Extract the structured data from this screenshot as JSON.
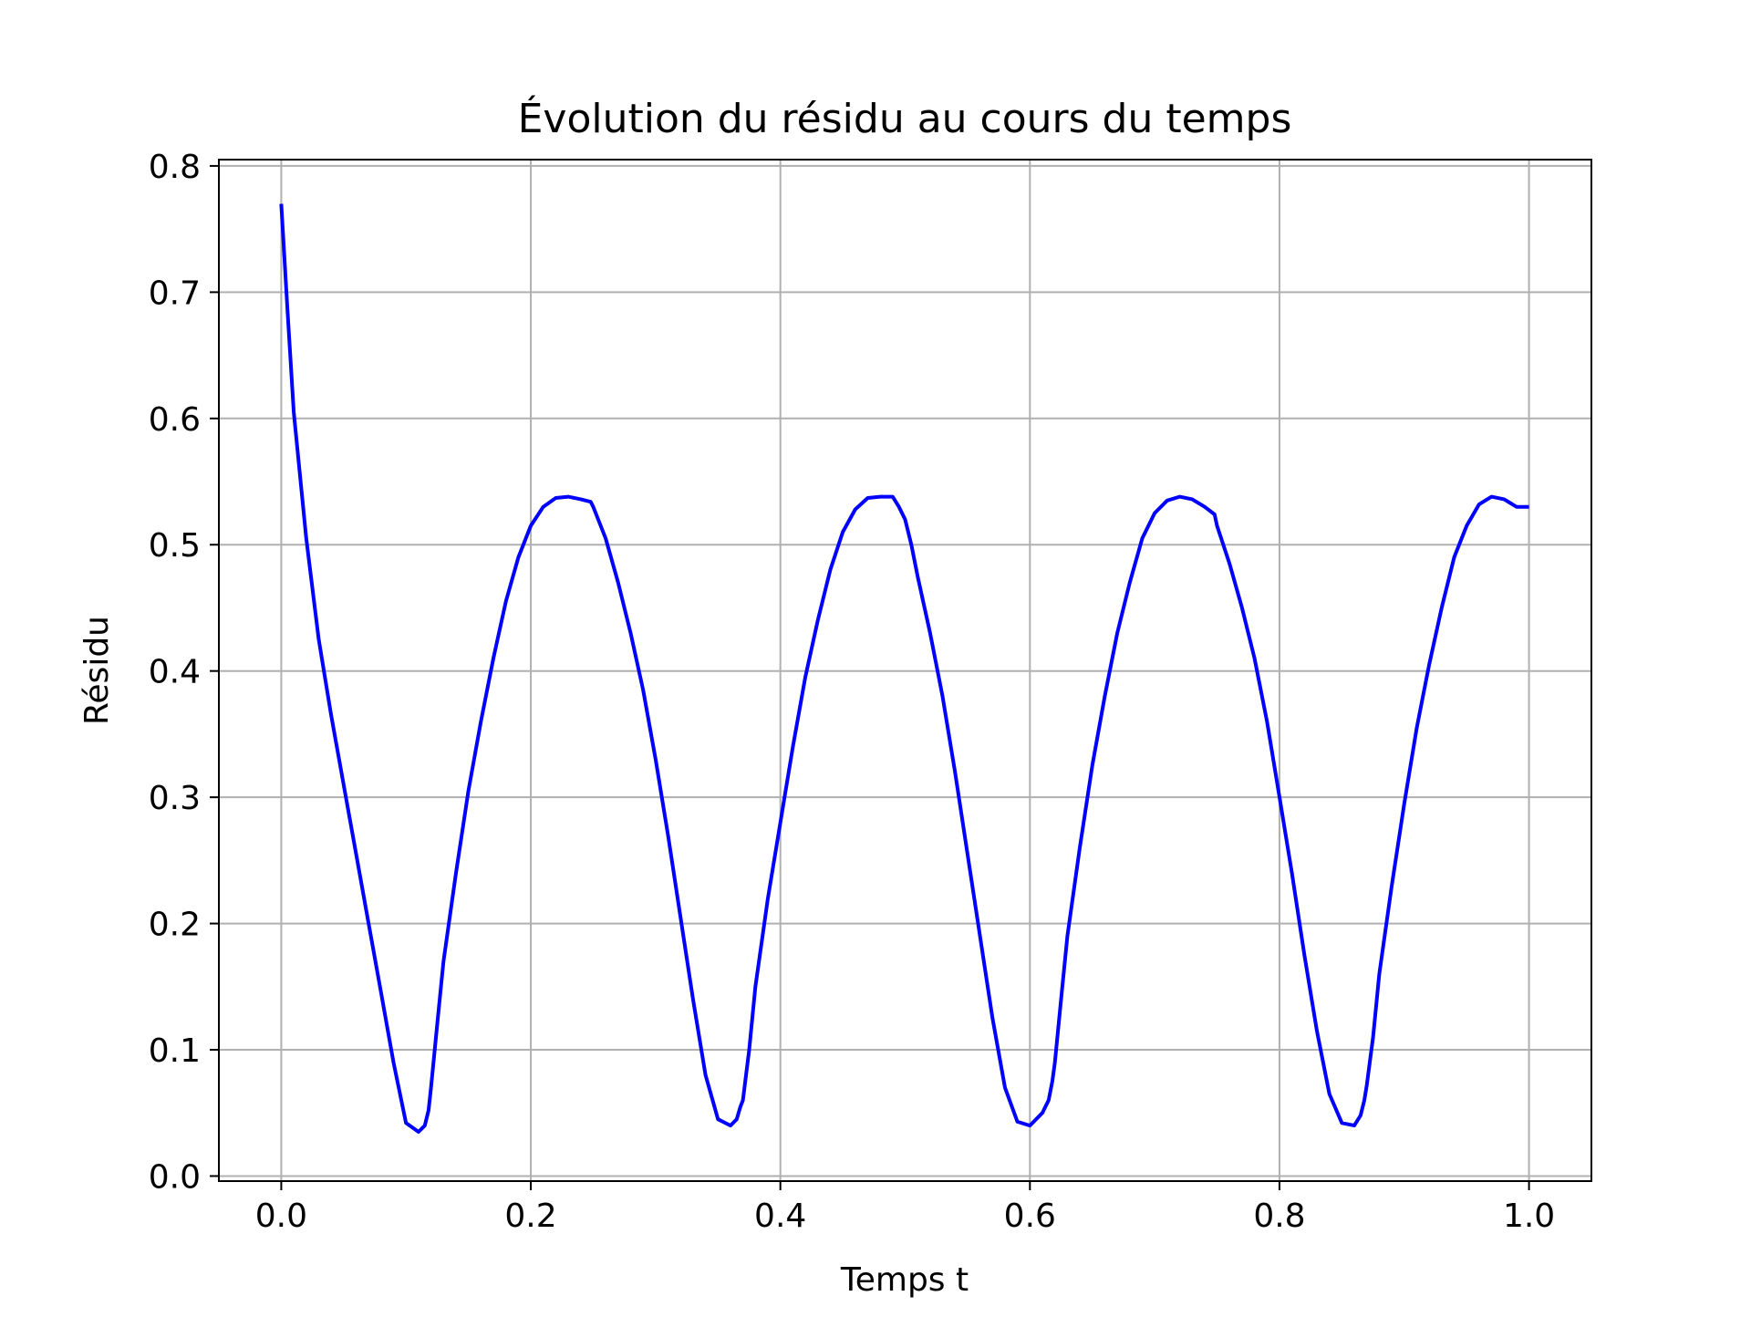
{
  "chart_data": {
    "type": "line",
    "title": "Évolution du résidu au cours du temps",
    "xlabel": "Temps t",
    "ylabel": "Résidu",
    "xlim": [
      -0.05,
      1.05
    ],
    "ylim": [
      -0.004,
      0.805
    ],
    "xticks": [
      0.0,
      0.2,
      0.4,
      0.6,
      0.8,
      1.0
    ],
    "xtick_labels": [
      "0.0",
      "0.2",
      "0.4",
      "0.6",
      "0.8",
      "1.0"
    ],
    "yticks": [
      0.0,
      0.1,
      0.2,
      0.3,
      0.4,
      0.5,
      0.6,
      0.7,
      0.8
    ],
    "ytick_labels": [
      "0.0",
      "0.1",
      "0.2",
      "0.3",
      "0.4",
      "0.5",
      "0.6",
      "0.7",
      "0.8"
    ],
    "grid": true,
    "series": [
      {
        "color": "#0000ff",
        "x": [
          0.0,
          0.005,
          0.01,
          0.02,
          0.03,
          0.04,
          0.05,
          0.06,
          0.07,
          0.08,
          0.09,
          0.1,
          0.11,
          0.115,
          0.118,
          0.12,
          0.125,
          0.13,
          0.14,
          0.15,
          0.16,
          0.17,
          0.18,
          0.19,
          0.2,
          0.21,
          0.22,
          0.23,
          0.24,
          0.248,
          0.25,
          0.26,
          0.27,
          0.28,
          0.29,
          0.3,
          0.31,
          0.32,
          0.33,
          0.34,
          0.35,
          0.36,
          0.365,
          0.368,
          0.37,
          0.375,
          0.38,
          0.39,
          0.4,
          0.41,
          0.42,
          0.43,
          0.44,
          0.45,
          0.46,
          0.47,
          0.48,
          0.49,
          0.495,
          0.5,
          0.505,
          0.51,
          0.52,
          0.53,
          0.54,
          0.55,
          0.56,
          0.57,
          0.58,
          0.59,
          0.6,
          0.61,
          0.615,
          0.618,
          0.62,
          0.625,
          0.63,
          0.64,
          0.65,
          0.66,
          0.67,
          0.68,
          0.69,
          0.7,
          0.71,
          0.72,
          0.73,
          0.74,
          0.748,
          0.75,
          0.76,
          0.77,
          0.78,
          0.79,
          0.8,
          0.81,
          0.82,
          0.83,
          0.84,
          0.85,
          0.86,
          0.865,
          0.868,
          0.87,
          0.875,
          0.88,
          0.89,
          0.9,
          0.91,
          0.92,
          0.93,
          0.94,
          0.95,
          0.96,
          0.97,
          0.98,
          0.99,
          0.995,
          1.0
        ],
        "y": [
          0.77,
          0.685,
          0.605,
          0.505,
          0.425,
          0.365,
          0.31,
          0.255,
          0.2,
          0.145,
          0.09,
          0.042,
          0.035,
          0.04,
          0.052,
          0.07,
          0.12,
          0.17,
          0.24,
          0.305,
          0.36,
          0.41,
          0.455,
          0.49,
          0.515,
          0.53,
          0.537,
          0.538,
          0.536,
          0.534,
          0.53,
          0.505,
          0.47,
          0.43,
          0.385,
          0.33,
          0.27,
          0.205,
          0.14,
          0.08,
          0.045,
          0.04,
          0.045,
          0.055,
          0.06,
          0.1,
          0.15,
          0.22,
          0.28,
          0.34,
          0.395,
          0.44,
          0.48,
          0.51,
          0.528,
          0.537,
          0.538,
          0.538,
          0.53,
          0.52,
          0.5,
          0.475,
          0.43,
          0.38,
          0.32,
          0.255,
          0.19,
          0.125,
          0.07,
          0.043,
          0.04,
          0.05,
          0.06,
          0.075,
          0.09,
          0.14,
          0.19,
          0.26,
          0.325,
          0.38,
          0.43,
          0.47,
          0.505,
          0.525,
          0.535,
          0.538,
          0.536,
          0.53,
          0.524,
          0.515,
          0.485,
          0.45,
          0.41,
          0.36,
          0.3,
          0.24,
          0.175,
          0.115,
          0.065,
          0.042,
          0.04,
          0.048,
          0.06,
          0.072,
          0.11,
          0.16,
          0.23,
          0.295,
          0.355,
          0.405,
          0.45,
          0.49,
          0.515,
          0.532,
          0.538,
          0.536,
          0.53,
          0.53,
          0.53
        ]
      }
    ]
  }
}
